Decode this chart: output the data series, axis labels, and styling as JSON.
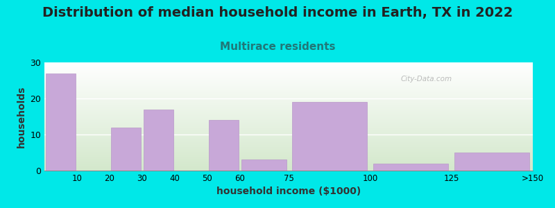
{
  "title": "Distribution of median household income in Earth, TX in 2022",
  "subtitle": "Multirace residents",
  "xlabel": "household income ($1000)",
  "ylabel": "households",
  "bin_edges": [
    0,
    10,
    20,
    30,
    40,
    50,
    60,
    75,
    100,
    125,
    150
  ],
  "bin_labels": [
    "10",
    "20",
    "30",
    "40",
    "50",
    "60",
    "75",
    "100",
    "125",
    ">150"
  ],
  "values": [
    27,
    0,
    12,
    17,
    0,
    14,
    3,
    19,
    2,
    5
  ],
  "bar_color": "#c8a8d8",
  "bar_edgecolor": "#b898c8",
  "background_color": "#00e8e8",
  "plot_bg_top": "#ffffff",
  "plot_bg_bottom": "#d4e8cc",
  "ylim": [
    0,
    30
  ],
  "yticks": [
    0,
    10,
    20,
    30
  ],
  "title_fontsize": 14,
  "subtitle_fontsize": 11,
  "subtitle_color": "#207878",
  "axis_label_fontsize": 10,
  "watermark": "City-Data.com"
}
